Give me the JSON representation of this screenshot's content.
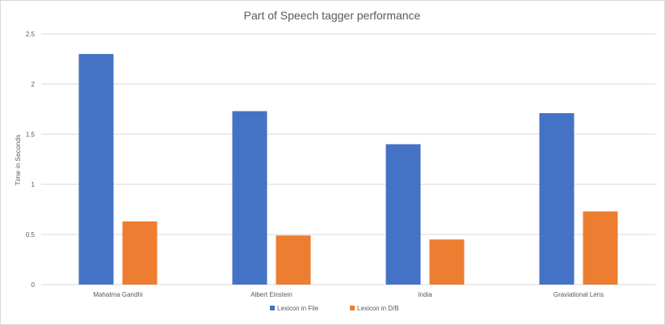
{
  "chart_data": {
    "type": "bar",
    "title": "Part of Speech tagger performance",
    "xlabel": "",
    "ylabel": "Time in Seconds",
    "categories": [
      "Mahatma Gandhi",
      "Albert Einstein",
      "India",
      "Graviational Lens"
    ],
    "series": [
      {
        "name": "Lexicon in File",
        "color": "#4472C4",
        "values": [
          2.3,
          1.73,
          1.4,
          1.71
        ]
      },
      {
        "name": "Lexicon in D/B",
        "color": "#ED7D31",
        "values": [
          0.63,
          0.49,
          0.45,
          0.73
        ]
      }
    ],
    "ylim": [
      0,
      2.5
    ],
    "yticks": [
      0,
      0.5,
      1,
      1.5,
      2,
      2.5
    ],
    "grid": true,
    "legend": "bottom"
  }
}
